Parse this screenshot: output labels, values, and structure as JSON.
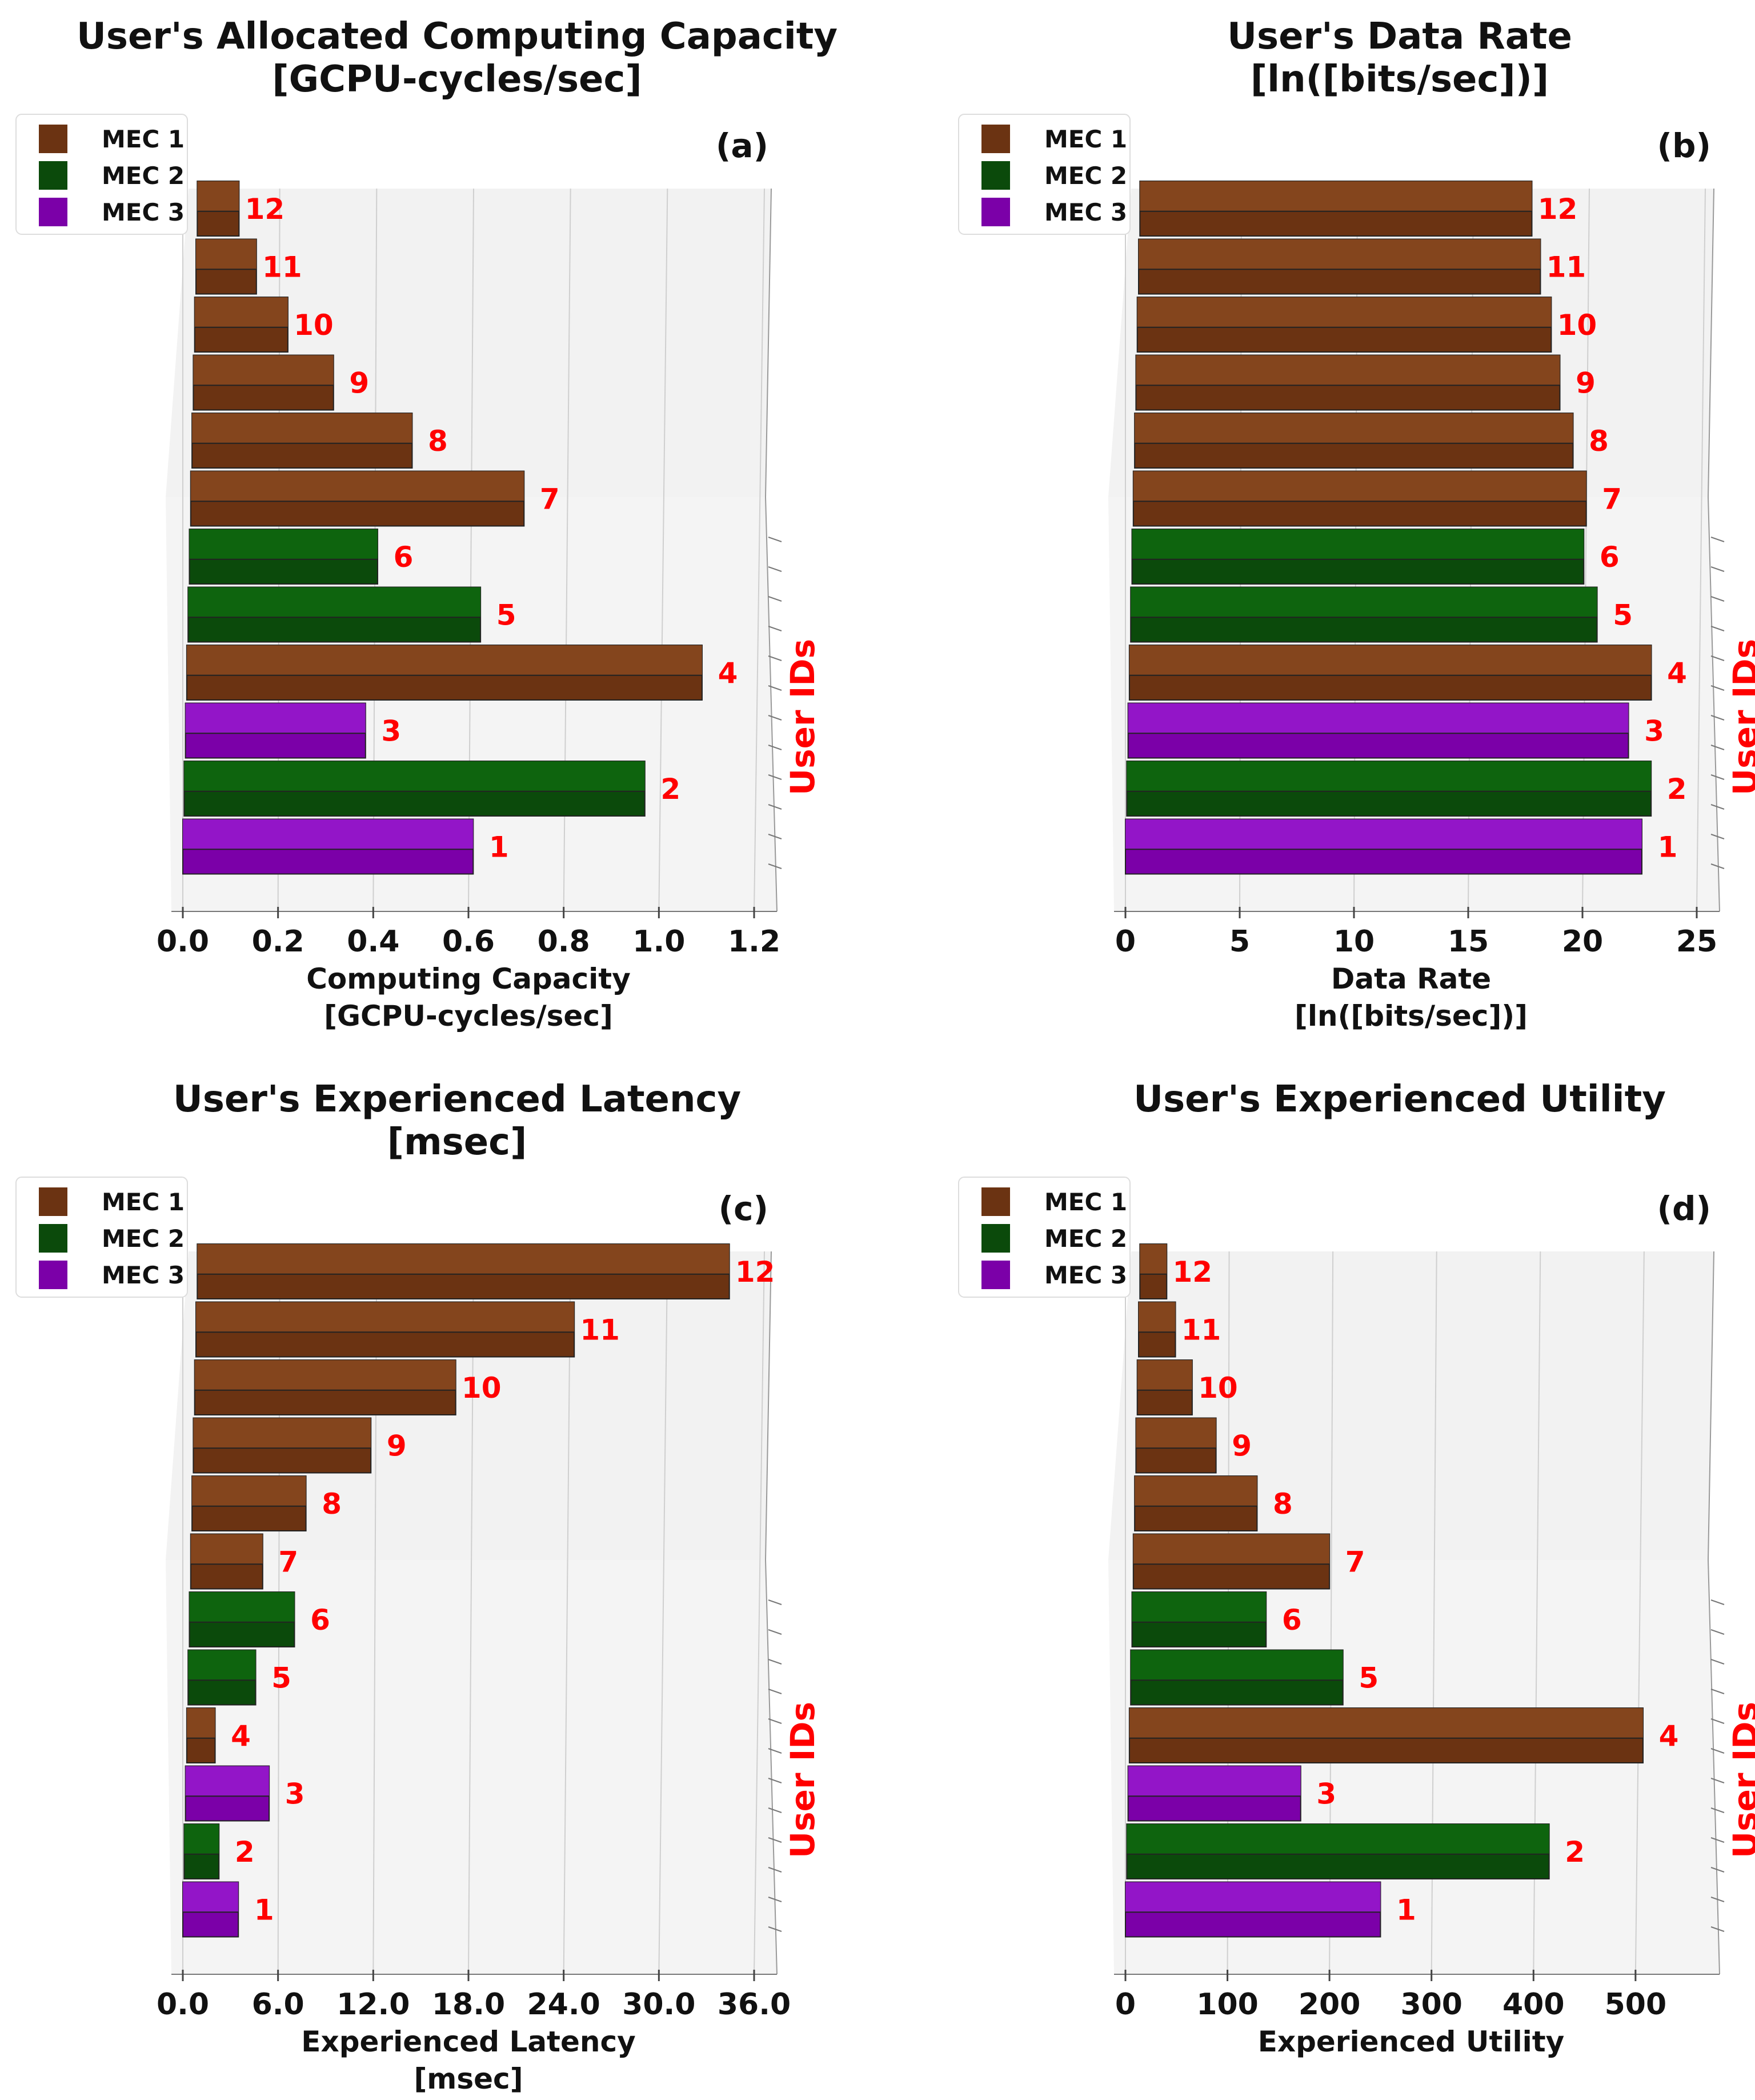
{
  "legend": [
    {
      "name": "MEC 1",
      "color": "#6b3312",
      "top": "#8b4a20"
    },
    {
      "name": "MEC 2",
      "color": "#0b4a0b",
      "top": "#0f6a0f"
    },
    {
      "name": "MEC 3",
      "color": "#7b00a8",
      "top": "#9a1ad0"
    }
  ],
  "label_color": "#ff0000",
  "side_label": "User IDs",
  "chart_data": [
    {
      "type": "bar",
      "orientation": "horizontal-3d",
      "title_lines": [
        "User's Allocated Computing Capacity",
        "[GCPU-cycles/sec]"
      ],
      "panel_tag": "(a)",
      "xlabel_lines": [
        "Computing Capacity",
        "[GCPU-cycles/sec]"
      ],
      "ylabel": "User IDs",
      "xlim": [
        0,
        1.2
      ],
      "xticks": [
        0.0,
        0.2,
        0.4,
        0.6,
        0.8,
        1.0,
        1.2
      ],
      "xtick_labels": [
        "0.0",
        "0.2",
        "0.4",
        "0.6",
        "0.8",
        "1.0",
        "1.2"
      ],
      "users": [
        "1",
        "2",
        "3",
        "4",
        "5",
        "6",
        "7",
        "8",
        "9",
        "10",
        "11",
        "12"
      ],
      "mec": [
        3,
        2,
        3,
        1,
        2,
        2,
        1,
        1,
        1,
        1,
        1,
        1
      ],
      "values": [
        0.61,
        0.97,
        0.38,
        1.09,
        0.62,
        0.4,
        0.71,
        0.47,
        0.3,
        0.2,
        0.13,
        0.09
      ]
    },
    {
      "type": "bar",
      "orientation": "horizontal-3d",
      "title_lines": [
        "User's Data Rate",
        "[ln([bits/sec])]"
      ],
      "panel_tag": "(b)",
      "xlabel_lines": [
        "Data Rate",
        "[ln([bits/sec])]"
      ],
      "ylabel": "User IDs",
      "xlim": [
        0,
        25
      ],
      "xticks": [
        0,
        5,
        10,
        15,
        20,
        25
      ],
      "xtick_labels": [
        "0",
        "5",
        "10",
        "15",
        "20",
        "25"
      ],
      "users": [
        "1",
        "2",
        "3",
        "4",
        "5",
        "6",
        "7",
        "8",
        "9",
        "10",
        "11",
        "12"
      ],
      "mec": [
        3,
        2,
        3,
        1,
        2,
        2,
        1,
        1,
        1,
        1,
        1,
        1
      ],
      "values": [
        22.6,
        23.0,
        22.0,
        23.0,
        20.6,
        20.0,
        20.1,
        19.5,
        18.9,
        18.5,
        18.0,
        17.6
      ]
    },
    {
      "type": "bar",
      "orientation": "horizontal-3d",
      "title_lines": [
        "User's Experienced Latency",
        "[msec]"
      ],
      "panel_tag": "(c)",
      "xlabel_lines": [
        "Experienced Latency",
        "[msec]"
      ],
      "ylabel": "User IDs",
      "xlim": [
        0,
        36
      ],
      "xticks": [
        0,
        6,
        12,
        18,
        24,
        30,
        36
      ],
      "xtick_labels": [
        "0.0",
        "6.0",
        "12.0",
        "18.0",
        "24.0",
        "30.0",
        "36.0"
      ],
      "users": [
        "1",
        "2",
        "3",
        "4",
        "5",
        "6",
        "7",
        "8",
        "9",
        "10",
        "11",
        "12"
      ],
      "mec": [
        3,
        2,
        3,
        1,
        2,
        2,
        1,
        1,
        1,
        1,
        1,
        1
      ],
      "values": [
        3.5,
        2.2,
        5.3,
        1.8,
        4.3,
        6.7,
        4.6,
        7.3,
        11.4,
        16.8,
        24.4,
        34.4
      ]
    },
    {
      "type": "bar",
      "orientation": "horizontal-3d",
      "title_lines": [
        "User's Experienced Utility"
      ],
      "panel_tag": "(d)",
      "xlabel_lines": [
        "Experienced Utility"
      ],
      "ylabel": "User IDs",
      "xlim": [
        0,
        560
      ],
      "xticks": [
        0,
        100,
        200,
        300,
        400,
        500
      ],
      "xtick_labels": [
        "0",
        "100",
        "200",
        "300",
        "400",
        "500"
      ],
      "users": [
        "1",
        "2",
        "3",
        "4",
        "5",
        "6",
        "7",
        "8",
        "9",
        "10",
        "11",
        "12"
      ],
      "mec": [
        3,
        2,
        3,
        1,
        2,
        2,
        1,
        1,
        1,
        1,
        1,
        1
      ],
      "values": [
        250,
        415,
        170,
        507,
        210,
        133,
        195,
        122,
        80,
        55,
        37,
        27
      ]
    }
  ]
}
